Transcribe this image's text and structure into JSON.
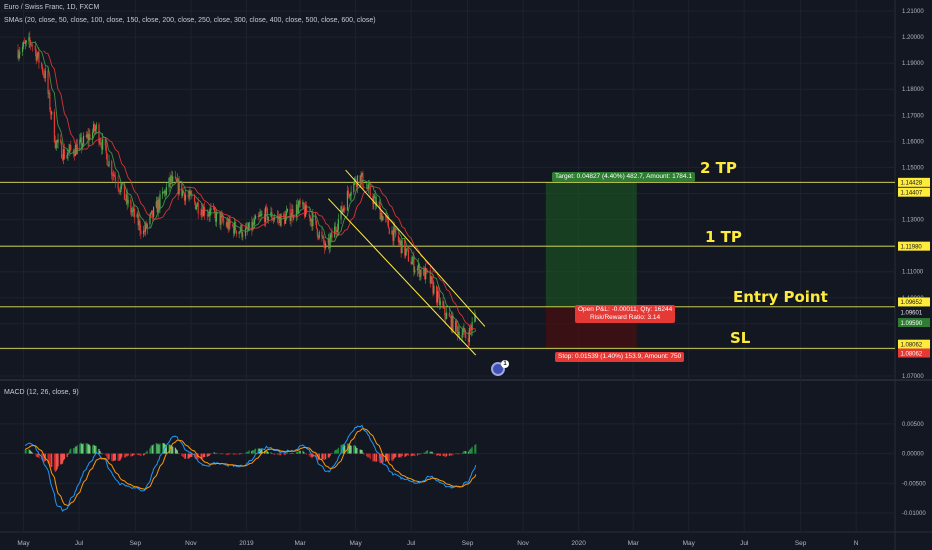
{
  "header": {
    "symbol": "Euro / Swiss Franc, 1D, FXCM",
    "sma_label": "SMAs (20, close, 50, close, 100, close, 150, close, 200, close, 250, close, 300, close, 400, close, 500, close, 600, close)",
    "macd_label": "MACD (12, 26, close, 9)"
  },
  "annotations": {
    "tp2": "2 TP",
    "tp1": "1 TP",
    "entry": "Entry Point",
    "sl": "SL",
    "target_box": "Target: 0.04827 (4.40%) 482.7, Amount: 1784.1",
    "pnl_line1": "Open P&L: -0.00011, Qty: 16244",
    "pnl_line2": "Risk/Reward Ratio: 3.14",
    "stop_box": "Stop: 0.01539 (1.40%) 153.9, Amount: 750",
    "alert_badge": "1"
  },
  "colors": {
    "background": "#131722",
    "grid": "#1e222d",
    "horizontal_line": "#e6e65c",
    "channel": "#ffeb3b",
    "up_candle": "#4caf50",
    "down_candle": "#e53935",
    "target_zone": "#1b5e20",
    "stop_zone": "#4a1010",
    "macd_line": "#2196f3",
    "signal_line": "#ff9800"
  },
  "chart_data": [
    {
      "type": "candlestick",
      "title": "Euro / Swiss Franc, 1D, FXCM",
      "y_ticks": [
        "1.21000",
        "1.20000",
        "1.19000",
        "1.18000",
        "1.17000",
        "1.16000",
        "1.15000",
        "1.14000",
        "1.13000",
        "1.12000",
        "1.11000",
        "1.10000",
        "1.09000",
        "1.08000",
        "1.07000"
      ],
      "ylim": [
        1.07,
        1.21
      ],
      "x_ticks": [
        "May",
        "Jul",
        "Sep",
        "Nov",
        "2019",
        "Mar",
        "May",
        "Jul",
        "Sep",
        "Nov",
        "2020",
        "Mar",
        "May",
        "Jul",
        "Sep",
        "N"
      ],
      "price_levels": [
        {
          "label": "1 TP",
          "value": 1.1198,
          "tag": "1.11980"
        },
        {
          "label": "2 TP",
          "value": 1.14428,
          "tag": "1.14428"
        },
        {
          "label": "Entry Point",
          "value": 1.09652,
          "tag": "1.09652"
        },
        {
          "label": "SL",
          "value": 1.08062,
          "tag": "1.08062"
        }
      ],
      "price_tags": [
        "1.14428",
        "1.14407",
        "1.11980",
        "1.09652",
        "1.09601",
        "1.09590",
        "1.08062",
        "1.08062"
      ],
      "close_path": [
        [
          "2018-04-25",
          1.195
        ],
        [
          "2018-05-10",
          1.198
        ],
        [
          "2018-05-25",
          1.185
        ],
        [
          "2018-06-05",
          1.16
        ],
        [
          "2018-06-15",
          1.155
        ],
        [
          "2018-07-01",
          1.158
        ],
        [
          "2018-07-20",
          1.165
        ],
        [
          "2018-08-05",
          1.15
        ],
        [
          "2018-08-25",
          1.135
        ],
        [
          "2018-09-10",
          1.125
        ],
        [
          "2018-09-25",
          1.135
        ],
        [
          "2018-10-10",
          1.145
        ],
        [
          "2018-10-25",
          1.14
        ],
        [
          "2018-11-10",
          1.135
        ],
        [
          "2018-11-25",
          1.132
        ],
        [
          "2018-12-10",
          1.128
        ],
        [
          "2019-01-01",
          1.125
        ],
        [
          "2019-01-20",
          1.132
        ],
        [
          "2019-02-10",
          1.13
        ],
        [
          "2019-02-28",
          1.135
        ],
        [
          "2019-03-15",
          1.13
        ],
        [
          "2019-03-30",
          1.118
        ],
        [
          "2019-04-10",
          1.128
        ],
        [
          "2019-04-25",
          1.142
        ],
        [
          "2019-05-05",
          1.147
        ],
        [
          "2019-05-20",
          1.138
        ],
        [
          "2019-06-05",
          1.128
        ],
        [
          "2019-06-20",
          1.12
        ],
        [
          "2019-07-05",
          1.112
        ],
        [
          "2019-07-20",
          1.108
        ],
        [
          "2019-08-05",
          1.095
        ],
        [
          "2019-08-20",
          1.088
        ],
        [
          "2019-09-01",
          1.085
        ],
        [
          "2019-09-10",
          1.093
        ]
      ],
      "trend_channel": [
        {
          "from": [
            "2019-04-20",
            1.149
          ],
          "to": [
            "2019-09-20",
            1.089
          ]
        },
        {
          "from": [
            "2019-04-01",
            1.138
          ],
          "to": [
            "2019-09-10",
            1.078
          ]
        }
      ]
    },
    {
      "type": "line",
      "title": "MACD (12, 26, close, 9)",
      "y_ticks": [
        "0.00500",
        "0.00000",
        "-0.00500",
        "-0.01000"
      ],
      "ylim": [
        -0.011,
        0.0075
      ]
    }
  ]
}
